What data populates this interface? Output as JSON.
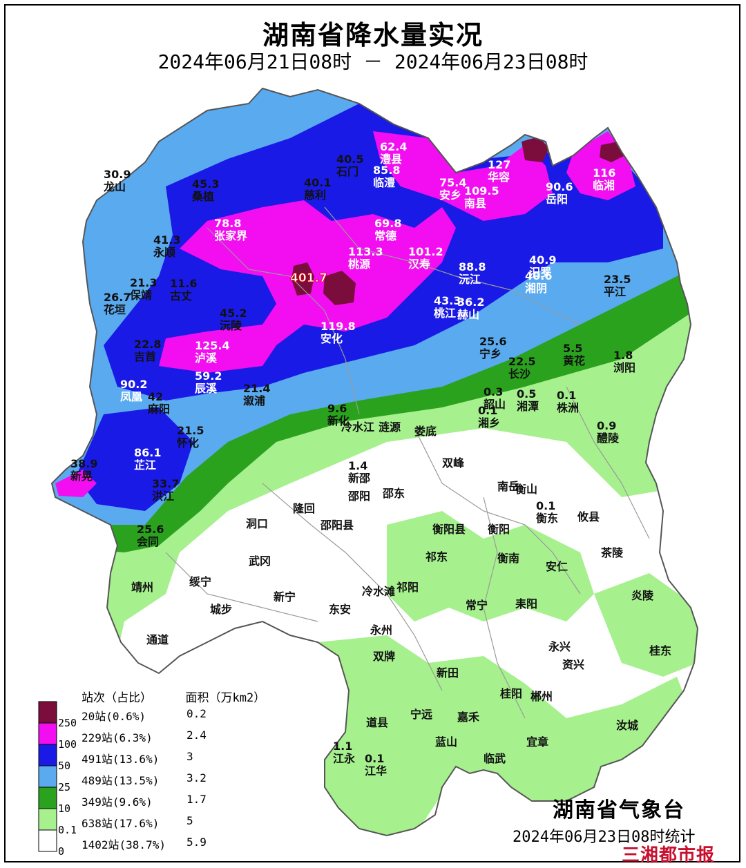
{
  "header": {
    "title": "湖南省降水量实况",
    "period": "2024年06月21日08时 － 2024年06月23日08时"
  },
  "legend": {
    "col_stations": "站次（占比）",
    "col_area": "面积（万km2）",
    "thresholds": [
      "250",
      "100",
      "50",
      "25",
      "10",
      "0.1",
      "0"
    ],
    "rows": [
      {
        "stations": "20站(0.6%)",
        "area": "0.2",
        "color": "#7a0d3c"
      },
      {
        "stations": "229站(6.3%)",
        "area": "2.4",
        "color": "#f20ef0"
      },
      {
        "stations": "491站(13.6%)",
        "area": "3",
        "color": "#1a1ae6"
      },
      {
        "stations": "489站(13.5%)",
        "area": "3.2",
        "color": "#5aaaf0"
      },
      {
        "stations": "349站(9.6%)",
        "area": "1.7",
        "color": "#2aa21e"
      },
      {
        "stations": "638站(17.6%)",
        "area": "5",
        "color": "#a6f08e"
      },
      {
        "stations": "1402站(38.7%)",
        "area": "5.9",
        "color": "#ffffff"
      }
    ]
  },
  "labels": [
    {
      "name": "龙山",
      "value": "30.9",
      "white": false
    },
    {
      "name": "桑植",
      "value": "45.3",
      "white": false
    },
    {
      "name": "慈利",
      "value": "40.1",
      "white": false
    },
    {
      "name": "石门",
      "value": "40.5",
      "white": false
    },
    {
      "name": "澧县",
      "value": "62.4",
      "white": true
    },
    {
      "name": "临澧",
      "value": "85.8",
      "white": true
    },
    {
      "name": "安乡",
      "value": "75.4",
      "white": true
    },
    {
      "name": "华容",
      "value": "127",
      "white": true
    },
    {
      "name": "南县",
      "value": "109.5",
      "white": true
    },
    {
      "name": "岳阳",
      "value": "90.6",
      "white": true
    },
    {
      "name": "临湘",
      "value": "116",
      "white": true
    },
    {
      "name": "永顺",
      "value": "41.3",
      "white": false
    },
    {
      "name": "张家界",
      "value": "78.8",
      "white": true
    },
    {
      "name": "常德",
      "value": "69.8",
      "white": true
    },
    {
      "name": "桃源",
      "value": "113.3",
      "white": true
    },
    {
      "name": "汉寿",
      "value": "101.2",
      "white": true
    },
    {
      "name": "沅江",
      "value": "88.8",
      "white": true
    },
    {
      "name": "汨罗",
      "value": "40.9",
      "white": true
    },
    {
      "name": "湘阴",
      "value": "40.6",
      "white": true
    },
    {
      "name": "平江",
      "value": "23.5",
      "white": false
    },
    {
      "name": "保靖",
      "value": "21.3",
      "white": false
    },
    {
      "name": "古丈",
      "value": "11.6",
      "white": false
    },
    {
      "name": "花垣",
      "value": "26.7",
      "white": false
    },
    {
      "name": "沅陵",
      "value": "45.2",
      "white": false
    },
    {
      "name": "桃江",
      "value": "43.3",
      "white": true
    },
    {
      "name": "赫山",
      "value": "36.2",
      "white": true
    },
    {
      "name": "安化",
      "value": "119.8",
      "white": true
    },
    {
      "name": "宁乡",
      "value": "25.6",
      "white": false
    },
    {
      "name": "长沙",
      "value": "22.5",
      "white": false
    },
    {
      "name": "黄花",
      "value": "5.5",
      "white": false
    },
    {
      "name": "浏阳",
      "value": "1.8",
      "white": false
    },
    {
      "name": "吉首",
      "value": "22.8",
      "white": false
    },
    {
      "name": "泸溪",
      "value": "125.4",
      "white": true
    },
    {
      "name": "辰溪",
      "value": "59.2",
      "white": true
    },
    {
      "name": "凤凰",
      "value": "90.2",
      "white": true
    },
    {
      "name": "麻阳",
      "value": "42",
      "white": false
    },
    {
      "name": "溆浦",
      "value": "21.4",
      "white": false
    },
    {
      "name": "新化",
      "value": "9.6",
      "white": false
    },
    {
      "name": "韶山",
      "value": "0.3",
      "white": false
    },
    {
      "name": "湘潭",
      "value": "0.5",
      "white": false
    },
    {
      "name": "株洲",
      "value": "0.1",
      "white": false
    },
    {
      "name": "湘乡",
      "value": "0.1",
      "white": false
    },
    {
      "name": "醴陵",
      "value": "0.9",
      "white": false
    },
    {
      "name": "怀化",
      "value": "21.5",
      "white": false
    },
    {
      "name": "芷江",
      "value": "86.1",
      "white": true
    },
    {
      "name": "新晃",
      "value": "38.9",
      "white": false
    },
    {
      "name": "洪江",
      "value": "33.7",
      "white": false
    },
    {
      "name": "会同",
      "value": "25.6",
      "white": false
    },
    {
      "name": "新邵",
      "value": "1.4",
      "white": false
    },
    {
      "name": "衡东",
      "value": "0.1",
      "white": false
    },
    {
      "name": "江永",
      "value": "1.1",
      "white": false
    },
    {
      "name": "江华",
      "value": "0.1",
      "white": false
    }
  ],
  "county_names": [
    "冷水江",
    "涟源",
    "娄底",
    "邵阳",
    "邵东",
    "双峰",
    "南岳",
    "衡山",
    "攸县",
    "洞口",
    "隆回",
    "邵阳县",
    "衡阳县",
    "衡阳",
    "武冈",
    "绥宁",
    "祁东",
    "衡南",
    "安仁",
    "茶陵",
    "靖州",
    "新宁",
    "城步",
    "冷水滩",
    "祁阳",
    "常宁",
    "耒阳",
    "炎陵",
    "东安",
    "永州",
    "通道",
    "双牌",
    "新田",
    "永兴",
    "资兴",
    "桂东",
    "桂阳",
    "郴州",
    "宁远",
    "道县",
    "嘉禾",
    "蓝山",
    "宜章",
    "汝城",
    "临武"
  ],
  "peak": {
    "value": "401.7"
  },
  "footer": {
    "agency": "湖南省气象台",
    "stat_time": "2024年06月23日08时统计",
    "publisher": "三湘都市报"
  }
}
